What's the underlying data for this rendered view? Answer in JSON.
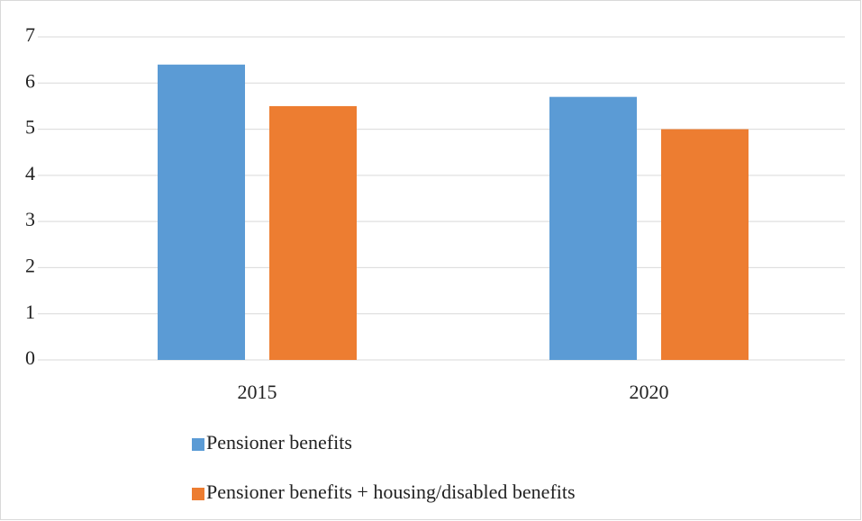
{
  "chart_data": {
    "type": "bar",
    "categories": [
      "2015",
      "2020"
    ],
    "series": [
      {
        "name": "Pensioner benefits",
        "color": "#5b9bd5",
        "values": [
          6.4,
          5.7
        ]
      },
      {
        "name": "Pensioner benefits + housing/disabled benefits",
        "color": "#ed7d31",
        "values": [
          5.5,
          5.0
        ]
      }
    ],
    "ylim": [
      0,
      7
    ],
    "yticks": [
      0,
      1,
      2,
      3,
      4,
      5,
      6,
      7
    ],
    "grid": true,
    "legend": "bottom"
  }
}
